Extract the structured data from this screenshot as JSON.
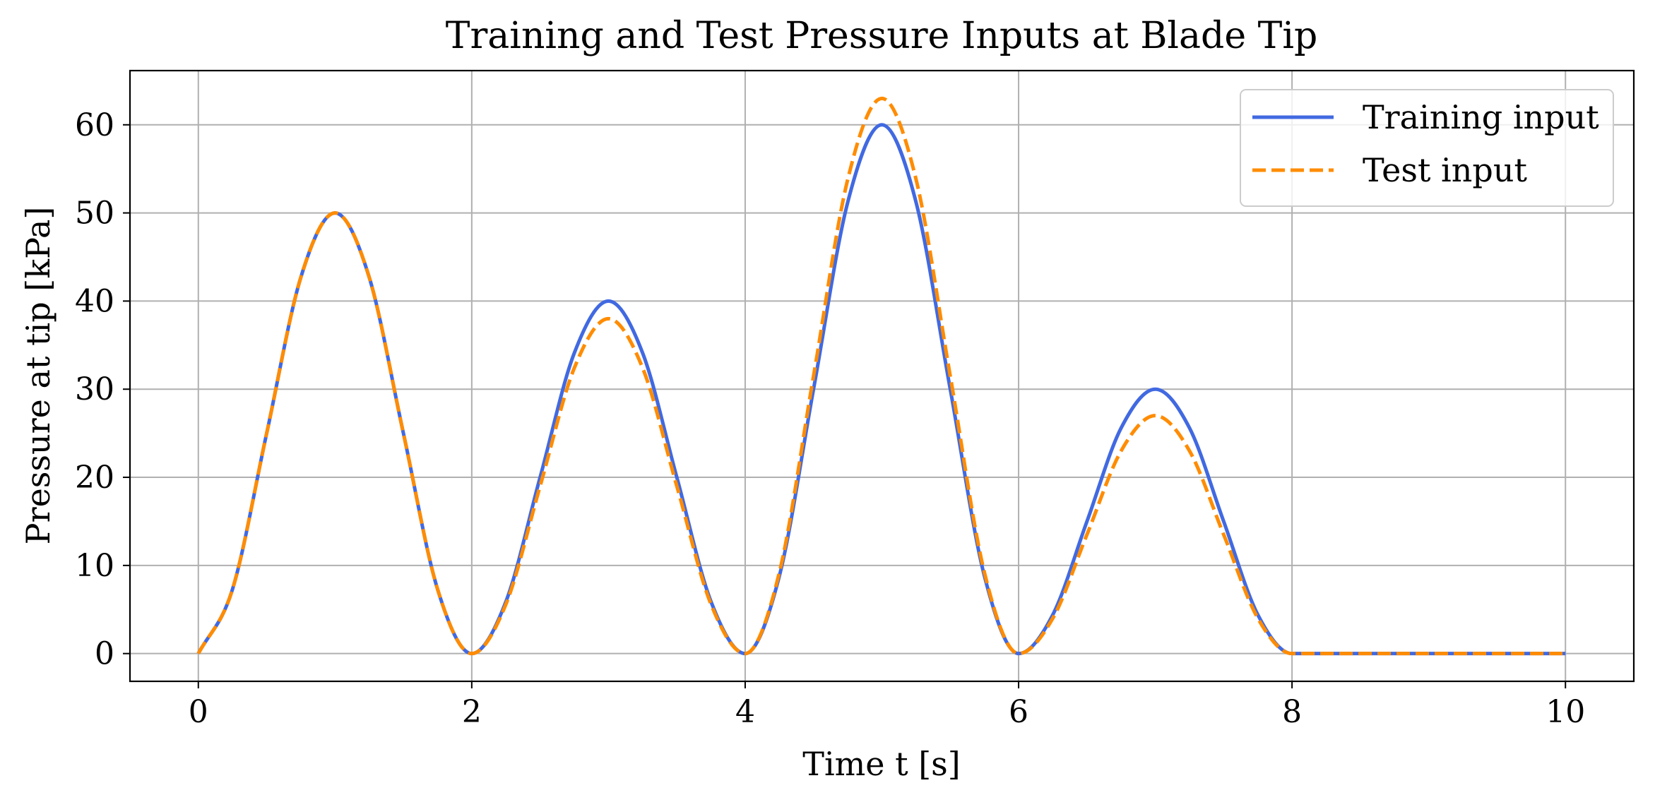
{
  "chart_data": {
    "type": "line",
    "title": "Training and Test Pressure Inputs at Blade Tip",
    "xlabel": "Time t [s]",
    "ylabel": "Pressure at tip [kPa]",
    "xlim": [
      -0.5,
      10.5
    ],
    "ylim": [
      -3.15,
      66.15
    ],
    "xticks": [
      0,
      2,
      4,
      6,
      8,
      10
    ],
    "yticks": [
      0,
      10,
      20,
      30,
      40,
      50,
      60
    ],
    "xtick_labels": [
      "0",
      "2",
      "4",
      "6",
      "8",
      "10"
    ],
    "ytick_labels": [
      "0",
      "10",
      "20",
      "30",
      "40",
      "50",
      "60"
    ],
    "grid": true,
    "legend_position": "upper right",
    "x": [
      0,
      0.25,
      0.5,
      0.75,
      1,
      1.25,
      1.5,
      1.75,
      2,
      2.25,
      2.5,
      2.75,
      3,
      3.25,
      3.5,
      3.75,
      4,
      4.25,
      4.5,
      4.75,
      5,
      5.25,
      5.5,
      5.75,
      6,
      6.25,
      6.5,
      6.75,
      7,
      7.25,
      7.5,
      7.75,
      8,
      9,
      10
    ],
    "series": [
      {
        "name": "Training input",
        "color": "#4169e1",
        "style": "solid",
        "values": [
          0,
          7.3,
          25,
          42.7,
          50,
          42.7,
          25,
          7.3,
          0,
          5.9,
          20,
          34.1,
          40,
          34.1,
          20,
          5.9,
          0,
          8.8,
          30,
          51.2,
          60,
          51.2,
          30,
          8.8,
          0,
          4.4,
          15,
          25.6,
          30,
          25.6,
          15,
          4.4,
          0,
          0,
          0
        ]
      },
      {
        "name": "Test input",
        "color": "#ff8c00",
        "style": "dashed",
        "values": [
          0,
          7.3,
          25,
          42.7,
          50,
          42.7,
          25,
          7.3,
          0,
          5.6,
          19,
          32.4,
          38,
          32.4,
          19,
          5.6,
          0,
          9.2,
          31.5,
          53.8,
          63,
          53.8,
          31.5,
          9.2,
          0,
          4,
          13.5,
          23,
          27,
          23,
          13.5,
          4,
          0,
          0,
          0
        ]
      }
    ]
  }
}
